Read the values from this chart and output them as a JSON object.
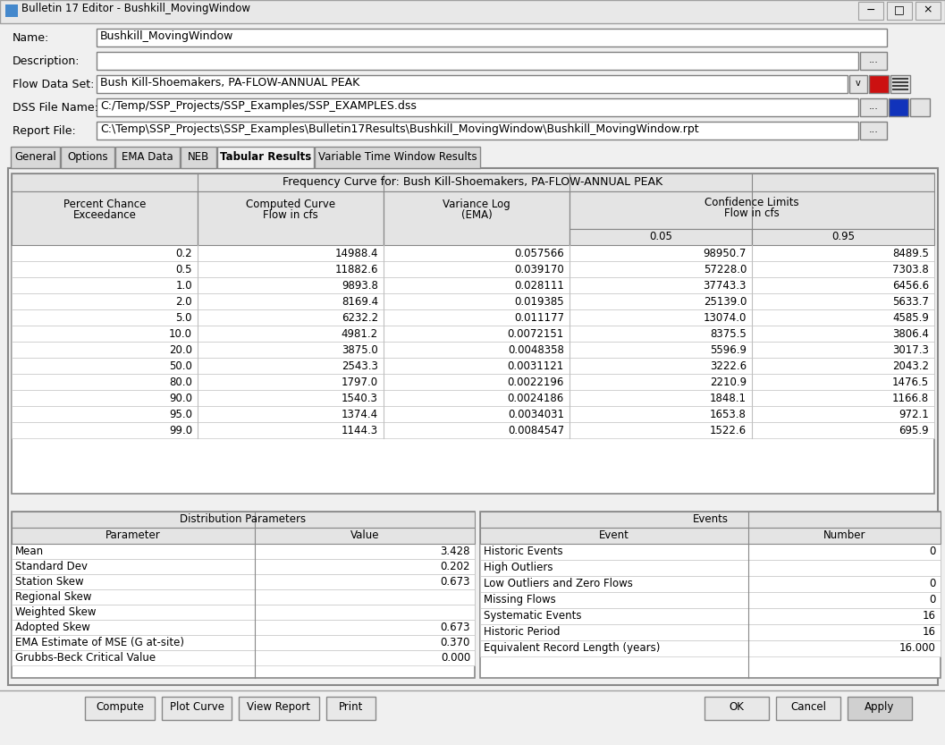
{
  "title_bar": "Bulletin 17 Editor - Bushkill_MovingWindow",
  "name_value": "Bushkill_MovingWindow",
  "description_value": "",
  "flow_data_set": "Bush Kill-Shoemakers, PA-FLOW-ANNUAL PEAK",
  "dss_file": "C:/Temp/SSP_Projects/SSP_Examples/SSP_EXAMPLES.dss",
  "report_file": "C:\\Temp\\SSP_Projects\\SSP_Examples\\Bulletin17Results\\Bushkill_MovingWindow\\Bushkill_MovingWindow.rpt",
  "tabs": [
    "General",
    "Options",
    "EMA Data",
    "NEB",
    "Tabular Results",
    "Variable Time Window Results"
  ],
  "active_tab": "Tabular Results",
  "freq_table_title": "Frequency Curve for: Bush Kill-Shoemakers, PA-FLOW-ANNUAL PEAK",
  "freq_data": [
    [
      "0.2",
      "14988.4",
      "0.057566",
      "98950.7",
      "8489.5"
    ],
    [
      "0.5",
      "11882.6",
      "0.039170",
      "57228.0",
      "7303.8"
    ],
    [
      "1.0",
      "9893.8",
      "0.028111",
      "37743.3",
      "6456.6"
    ],
    [
      "2.0",
      "8169.4",
      "0.019385",
      "25139.0",
      "5633.7"
    ],
    [
      "5.0",
      "6232.2",
      "0.011177",
      "13074.0",
      "4585.9"
    ],
    [
      "10.0",
      "4981.2",
      "0.0072151",
      "8375.5",
      "3806.4"
    ],
    [
      "20.0",
      "3875.0",
      "0.0048358",
      "5596.9",
      "3017.3"
    ],
    [
      "50.0",
      "2543.3",
      "0.0031121",
      "3222.6",
      "2043.2"
    ],
    [
      "80.0",
      "1797.0",
      "0.0022196",
      "2210.9",
      "1476.5"
    ],
    [
      "90.0",
      "1540.3",
      "0.0024186",
      "1848.1",
      "1166.8"
    ],
    [
      "95.0",
      "1374.4",
      "0.0034031",
      "1653.8",
      "972.1"
    ],
    [
      "99.0",
      "1144.3",
      "0.0084547",
      "1522.6",
      "695.9"
    ]
  ],
  "dist_params_title": "Distribution Parameters",
  "dist_data": [
    [
      "Mean",
      "3.428"
    ],
    [
      "Standard Dev",
      "0.202"
    ],
    [
      "Station Skew",
      "0.673"
    ],
    [
      "Regional Skew",
      ""
    ],
    [
      "Weighted Skew",
      ""
    ],
    [
      "Adopted Skew",
      "0.673"
    ],
    [
      "EMA Estimate of MSE (G at-site)",
      "0.370"
    ],
    [
      "Grubbs-Beck Critical Value",
      "0.000"
    ]
  ],
  "events_title": "Events",
  "events_data": [
    [
      "Historic Events",
      "0"
    ],
    [
      "High Outliers",
      ""
    ],
    [
      "Low Outliers and Zero Flows",
      "0"
    ],
    [
      "Missing Flows",
      "0"
    ],
    [
      "Systematic Events",
      "16"
    ],
    [
      "Historic Period",
      "16"
    ],
    [
      "Equivalent Record Length (years)",
      "16.000"
    ]
  ],
  "buttons_left": [
    "Compute",
    "Plot Curve",
    "View Report",
    "Print"
  ],
  "buttons_right": [
    [
      "OK",
      false
    ],
    [
      "Cancel",
      false
    ],
    [
      "Apply",
      true
    ]
  ],
  "bg_color": "#f0f0f0",
  "white": "#ffffff",
  "header_bg": "#e4e4e4",
  "border_dark": "#808080",
  "border_light": "#c8c8c8",
  "tab_active_bg": "#f0f0f0",
  "tab_inactive_bg": "#d8d8d8",
  "button_bg": "#e8e8e8",
  "apply_bg": "#d0d0d0",
  "titlebar_bg": "#e8e8e8"
}
